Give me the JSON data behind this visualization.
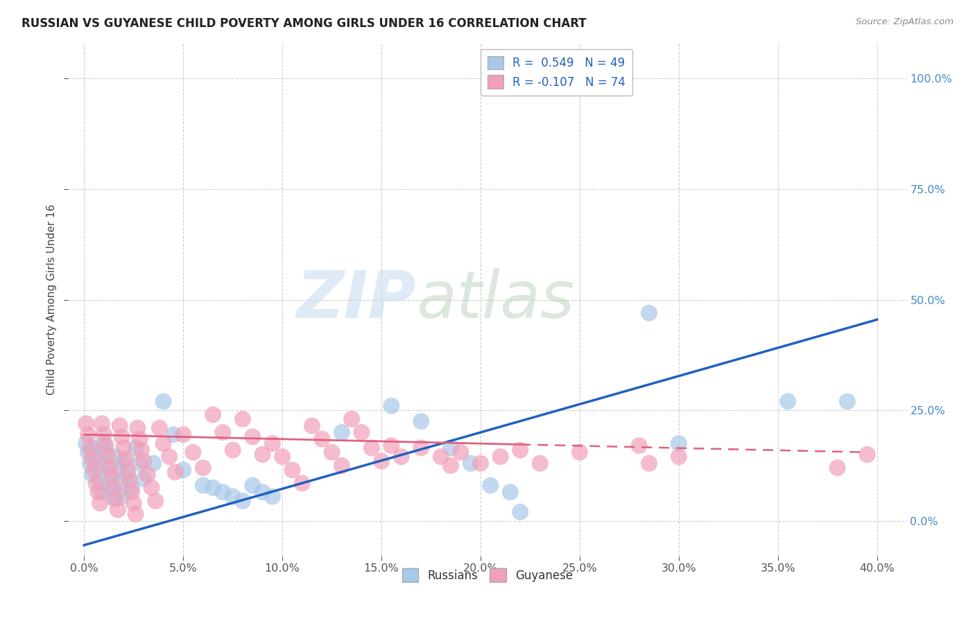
{
  "title": "RUSSIAN VS GUYANESE CHILD POVERTY AMONG GIRLS UNDER 16 CORRELATION CHART",
  "source": "Source: ZipAtlas.com",
  "xlim": [
    -0.008,
    0.415
  ],
  "ylim": [
    -0.08,
    1.08
  ],
  "x_ticks": [
    0.0,
    0.05,
    0.1,
    0.15,
    0.2,
    0.25,
    0.3,
    0.35,
    0.4
  ],
  "y_ticks": [
    0.0,
    0.25,
    0.5,
    0.75,
    1.0
  ],
  "ylabel": "Child Poverty Among Girls Under 16",
  "legend_labels": [
    "Russians",
    "Guyanese"
  ],
  "watermark_zip": "ZIP",
  "watermark_atlas": "atlas",
  "russian_R": 0.549,
  "russian_N": 49,
  "guyanese_R": -0.107,
  "guyanese_N": 74,
  "russian_color": "#a8c8e8",
  "guyanese_color": "#f0a0b8",
  "russian_line_color": "#2060c0",
  "guyanese_line_color": "#e06080",
  "background_color": "#ffffff",
  "grid_color": "#c8c8c8",
  "russian_points": [
    [
      0.001,
      0.175
    ],
    [
      0.002,
      0.155
    ],
    [
      0.003,
      0.13
    ],
    [
      0.004,
      0.105
    ],
    [
      0.005,
      0.165
    ],
    [
      0.006,
      0.145
    ],
    [
      0.007,
      0.12
    ],
    [
      0.008,
      0.09
    ],
    [
      0.009,
      0.065
    ],
    [
      0.01,
      0.175
    ],
    [
      0.011,
      0.155
    ],
    [
      0.012,
      0.125
    ],
    [
      0.013,
      0.095
    ],
    [
      0.014,
      0.07
    ],
    [
      0.015,
      0.05
    ],
    [
      0.016,
      0.145
    ],
    [
      0.017,
      0.115
    ],
    [
      0.018,
      0.085
    ],
    [
      0.019,
      0.055
    ],
    [
      0.02,
      0.135
    ],
    [
      0.022,
      0.105
    ],
    [
      0.024,
      0.075
    ],
    [
      0.026,
      0.165
    ],
    [
      0.028,
      0.13
    ],
    [
      0.03,
      0.095
    ],
    [
      0.035,
      0.13
    ],
    [
      0.04,
      0.27
    ],
    [
      0.045,
      0.195
    ],
    [
      0.05,
      0.115
    ],
    [
      0.06,
      0.08
    ],
    [
      0.065,
      0.075
    ],
    [
      0.07,
      0.065
    ],
    [
      0.075,
      0.055
    ],
    [
      0.08,
      0.045
    ],
    [
      0.085,
      0.08
    ],
    [
      0.09,
      0.065
    ],
    [
      0.095,
      0.055
    ],
    [
      0.13,
      0.2
    ],
    [
      0.155,
      0.26
    ],
    [
      0.17,
      0.225
    ],
    [
      0.185,
      0.165
    ],
    [
      0.195,
      0.13
    ],
    [
      0.205,
      0.08
    ],
    [
      0.215,
      0.065
    ],
    [
      0.22,
      0.02
    ],
    [
      0.285,
      0.47
    ],
    [
      0.3,
      0.175
    ],
    [
      0.355,
      0.27
    ],
    [
      0.385,
      0.27
    ]
  ],
  "guyanese_points": [
    [
      0.001,
      0.22
    ],
    [
      0.002,
      0.195
    ],
    [
      0.003,
      0.165
    ],
    [
      0.004,
      0.14
    ],
    [
      0.005,
      0.115
    ],
    [
      0.006,
      0.085
    ],
    [
      0.007,
      0.065
    ],
    [
      0.008,
      0.04
    ],
    [
      0.009,
      0.22
    ],
    [
      0.01,
      0.195
    ],
    [
      0.011,
      0.17
    ],
    [
      0.012,
      0.145
    ],
    [
      0.013,
      0.12
    ],
    [
      0.014,
      0.1
    ],
    [
      0.015,
      0.075
    ],
    [
      0.016,
      0.05
    ],
    [
      0.017,
      0.025
    ],
    [
      0.018,
      0.215
    ],
    [
      0.019,
      0.19
    ],
    [
      0.02,
      0.165
    ],
    [
      0.021,
      0.14
    ],
    [
      0.022,
      0.115
    ],
    [
      0.023,
      0.09
    ],
    [
      0.024,
      0.065
    ],
    [
      0.025,
      0.04
    ],
    [
      0.026,
      0.015
    ],
    [
      0.027,
      0.21
    ],
    [
      0.028,
      0.185
    ],
    [
      0.029,
      0.16
    ],
    [
      0.03,
      0.135
    ],
    [
      0.032,
      0.105
    ],
    [
      0.034,
      0.075
    ],
    [
      0.036,
      0.045
    ],
    [
      0.038,
      0.21
    ],
    [
      0.04,
      0.175
    ],
    [
      0.043,
      0.145
    ],
    [
      0.046,
      0.11
    ],
    [
      0.05,
      0.195
    ],
    [
      0.055,
      0.155
    ],
    [
      0.06,
      0.12
    ],
    [
      0.065,
      0.24
    ],
    [
      0.07,
      0.2
    ],
    [
      0.075,
      0.16
    ],
    [
      0.08,
      0.23
    ],
    [
      0.085,
      0.19
    ],
    [
      0.09,
      0.15
    ],
    [
      0.095,
      0.175
    ],
    [
      0.1,
      0.145
    ],
    [
      0.105,
      0.115
    ],
    [
      0.11,
      0.085
    ],
    [
      0.115,
      0.215
    ],
    [
      0.12,
      0.185
    ],
    [
      0.125,
      0.155
    ],
    [
      0.13,
      0.125
    ],
    [
      0.135,
      0.23
    ],
    [
      0.14,
      0.2
    ],
    [
      0.145,
      0.165
    ],
    [
      0.15,
      0.135
    ],
    [
      0.155,
      0.17
    ],
    [
      0.16,
      0.145
    ],
    [
      0.17,
      0.165
    ],
    [
      0.18,
      0.145
    ],
    [
      0.185,
      0.125
    ],
    [
      0.19,
      0.155
    ],
    [
      0.2,
      0.13
    ],
    [
      0.21,
      0.145
    ],
    [
      0.22,
      0.16
    ],
    [
      0.23,
      0.13
    ],
    [
      0.25,
      0.155
    ],
    [
      0.28,
      0.17
    ],
    [
      0.285,
      0.13
    ],
    [
      0.3,
      0.145
    ],
    [
      0.38,
      0.12
    ],
    [
      0.395,
      0.15
    ]
  ],
  "russian_line": [
    0.0,
    -0.055,
    0.4,
    0.455
  ],
  "guyanese_line": [
    0.0,
    0.195,
    0.395,
    0.155
  ]
}
